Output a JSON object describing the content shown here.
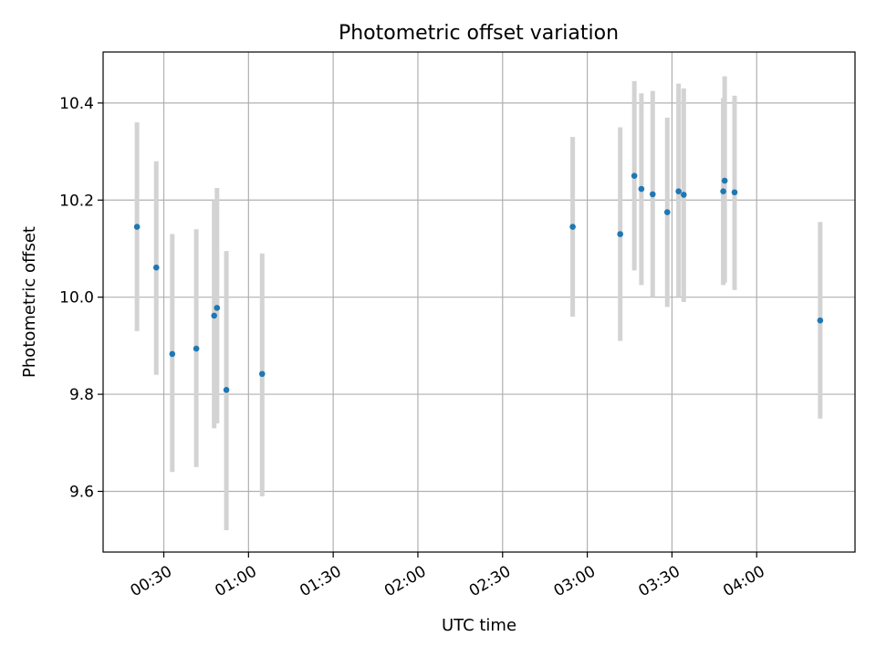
{
  "chart_data": {
    "type": "scatter",
    "title": "Photometric offset variation",
    "xlabel": "UTC time",
    "ylabel": "Photometric offset",
    "xlim": [
      "00:08:30",
      "04:34:50"
    ],
    "ylim": [
      9.475,
      10.505
    ],
    "x_ticks": [
      "00:30",
      "01:00",
      "01:30",
      "02:00",
      "02:30",
      "03:00",
      "03:30",
      "04:00"
    ],
    "y_ticks": [
      9.6,
      9.8,
      10.0,
      10.2,
      10.4
    ],
    "y_tick_labels": [
      "9.6",
      "9.8",
      "10.0",
      "10.2",
      "10.4"
    ],
    "grid": true,
    "points": [
      {
        "x": "00:20:30",
        "y": 10.145,
        "yerr_low": 9.93,
        "yerr_high": 10.36
      },
      {
        "x": "00:27:20",
        "y": 10.061,
        "yerr_low": 9.84,
        "yerr_high": 10.28
      },
      {
        "x": "00:33:00",
        "y": 9.883,
        "yerr_low": 9.64,
        "yerr_high": 10.13
      },
      {
        "x": "00:41:30",
        "y": 9.894,
        "yerr_low": 9.65,
        "yerr_high": 10.14
      },
      {
        "x": "00:47:50",
        "y": 9.962,
        "yerr_low": 9.73,
        "yerr_high": 10.2
      },
      {
        "x": "00:48:50",
        "y": 9.978,
        "yerr_low": 9.74,
        "yerr_high": 10.225
      },
      {
        "x": "00:52:10",
        "y": 9.809,
        "yerr_low": 9.52,
        "yerr_high": 10.095
      },
      {
        "x": "01:04:50",
        "y": 9.842,
        "yerr_low": 9.59,
        "yerr_high": 10.09
      },
      {
        "x": "02:54:50",
        "y": 10.145,
        "yerr_low": 9.96,
        "yerr_high": 10.33
      },
      {
        "x": "03:11:40",
        "y": 10.13,
        "yerr_low": 9.91,
        "yerr_high": 10.35
      },
      {
        "x": "03:16:40",
        "y": 10.25,
        "yerr_low": 10.055,
        "yerr_high": 10.445
      },
      {
        "x": "03:19:10",
        "y": 10.223,
        "yerr_low": 10.025,
        "yerr_high": 10.42
      },
      {
        "x": "03:23:10",
        "y": 10.212,
        "yerr_low": 10.0,
        "yerr_high": 10.425
      },
      {
        "x": "03:28:20",
        "y": 10.175,
        "yerr_low": 9.98,
        "yerr_high": 10.37
      },
      {
        "x": "03:32:20",
        "y": 10.218,
        "yerr_low": 10.0,
        "yerr_high": 10.44
      },
      {
        "x": "03:34:10",
        "y": 10.211,
        "yerr_low": 9.99,
        "yerr_high": 10.43
      },
      {
        "x": "03:48:10",
        "y": 10.218,
        "yerr_low": 10.025,
        "yerr_high": 10.41
      },
      {
        "x": "03:48:40",
        "y": 10.24,
        "yerr_low": 10.03,
        "yerr_high": 10.455
      },
      {
        "x": "03:52:10",
        "y": 10.216,
        "yerr_low": 10.015,
        "yerr_high": 10.415
      },
      {
        "x": "04:22:30",
        "y": 9.952,
        "yerr_low": 9.75,
        "yerr_high": 10.155
      }
    ],
    "point_color": "#1f77b4",
    "errorbar_color": "#d3d3d3",
    "grid_color": "#b0b0b0"
  }
}
